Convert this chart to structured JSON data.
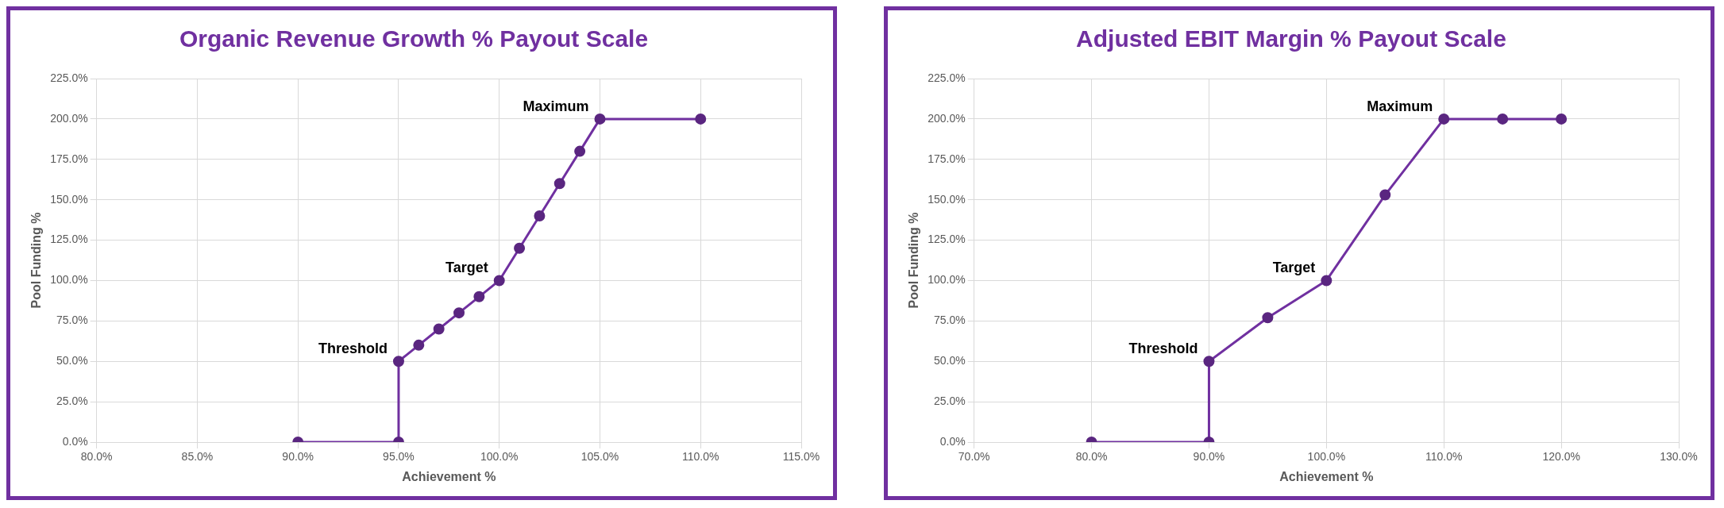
{
  "chart_data": [
    {
      "type": "line",
      "title": "Organic Revenue Growth % Payout Scale",
      "xlabel": "Achievement %",
      "ylabel": "Pool Funding %",
      "x": [
        90,
        95,
        95,
        96,
        97,
        98,
        99,
        100,
        101,
        102,
        103,
        104,
        105,
        110
      ],
      "series": [
        {
          "color": "#7030a0",
          "values": [
            0,
            0,
            50,
            60,
            70,
            80,
            90,
            100,
            120,
            140,
            160,
            180,
            200,
            200
          ]
        }
      ],
      "xlim": [
        80,
        115
      ],
      "xticks": [
        {
          "value": 80,
          "label": "80.0%"
        },
        {
          "value": 85,
          "label": "85.0%"
        },
        {
          "value": 90,
          "label": "90.0%"
        },
        {
          "value": 95,
          "label": "95.0%"
        },
        {
          "value": 100,
          "label": "100.0%"
        },
        {
          "value": 105,
          "label": "105.0%"
        },
        {
          "value": 110,
          "label": "110.0%"
        },
        {
          "value": 115,
          "label": "115.0%"
        }
      ],
      "ylim": [
        0,
        225
      ],
      "yticks": [
        {
          "value": 0,
          "label": "0.0%"
        },
        {
          "value": 25,
          "label": "25.0%"
        },
        {
          "value": 50,
          "label": "50.0%"
        },
        {
          "value": 75,
          "label": "75.0%"
        },
        {
          "value": 100,
          "label": "100.0%"
        },
        {
          "value": 125,
          "label": "125.0%"
        },
        {
          "value": 150,
          "label": "150.0%"
        },
        {
          "value": 175,
          "label": "175.0%"
        },
        {
          "value": 200,
          "label": "200.0%"
        },
        {
          "value": 225,
          "label": "225.0%"
        }
      ],
      "annotations": [
        {
          "text": "Threshold",
          "x": 95,
          "y": 50
        },
        {
          "text": "Target",
          "x": 100,
          "y": 100
        },
        {
          "text": "Maximum",
          "x": 105,
          "y": 200
        }
      ],
      "grid": true,
      "legend": false,
      "marker": "circle",
      "line_style": "solid"
    },
    {
      "type": "line",
      "title": "Adjusted EBIT Margin % Payout Scale",
      "xlabel": "Achievement %",
      "ylabel": "Pool Funding %",
      "x": [
        80,
        90,
        90,
        95,
        100,
        105,
        110,
        115,
        120
      ],
      "series": [
        {
          "color": "#7030a0",
          "values": [
            0,
            0,
            50,
            77,
            100,
            153,
            200,
            200,
            200
          ]
        }
      ],
      "xlim": [
        70,
        130
      ],
      "xticks": [
        {
          "value": 70,
          "label": "70.0%"
        },
        {
          "value": 80,
          "label": "80.0%"
        },
        {
          "value": 90,
          "label": "90.0%"
        },
        {
          "value": 100,
          "label": "100.0%"
        },
        {
          "value": 110,
          "label": "110.0%"
        },
        {
          "value": 120,
          "label": "120.0%"
        },
        {
          "value": 130,
          "label": "130.0%"
        }
      ],
      "ylim": [
        0,
        225
      ],
      "yticks": [
        {
          "value": 0,
          "label": "0.0%"
        },
        {
          "value": 25,
          "label": "25.0%"
        },
        {
          "value": 50,
          "label": "50.0%"
        },
        {
          "value": 75,
          "label": "75.0%"
        },
        {
          "value": 100,
          "label": "100.0%"
        },
        {
          "value": 125,
          "label": "125.0%"
        },
        {
          "value": 150,
          "label": "150.0%"
        },
        {
          "value": 175,
          "label": "175.0%"
        },
        {
          "value": 200,
          "label": "200.0%"
        },
        {
          "value": 225,
          "label": "225.0%"
        }
      ],
      "annotations": [
        {
          "text": "Threshold",
          "x": 90,
          "y": 50
        },
        {
          "text": "Target",
          "x": 100,
          "y": 100
        },
        {
          "text": "Maximum",
          "x": 110,
          "y": 200
        }
      ],
      "grid": true,
      "legend": false,
      "marker": "circle",
      "line_style": "solid"
    }
  ]
}
